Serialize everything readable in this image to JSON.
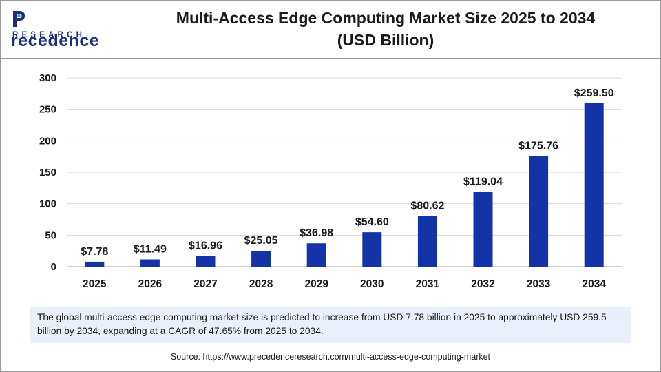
{
  "brand": {
    "name_top_rest": "recedence",
    "name_bottom": "RESEARCH",
    "primary_color": "#1d2e7a",
    "accent_color": "#2a9ad8"
  },
  "title_line1": "Multi-Access Edge Computing Market Size 2025 to 2034",
  "title_line2": "(USD Billion)",
  "summary": "The global multi-access edge computing market size is predicted to increase from USD 7.78 billion in 2025 to approximately USD 259.5 billion by 2034, expanding at a CAGR of 47.65% from 2025 to 2034.",
  "source": "Source: https://www.precedenceresearch.com/multi-access-edge-computing-market",
  "chart_data": {
    "type": "bar",
    "title": "Multi-Access Edge Computing Market Size 2025 to 2034 (USD Billion)",
    "xlabel": "",
    "ylabel": "",
    "categories": [
      "2025",
      "2026",
      "2027",
      "2028",
      "2029",
      "2030",
      "2031",
      "2032",
      "2033",
      "2034"
    ],
    "values": [
      7.78,
      11.49,
      16.96,
      25.05,
      36.98,
      54.6,
      80.62,
      119.04,
      175.76,
      259.5
    ],
    "data_labels": [
      "$7.78",
      "$11.49",
      "$16.96",
      "$25.05",
      "$36.98",
      "$54.60",
      "$80.62",
      "$119.04",
      "$175.76",
      "$259.50"
    ],
    "ylim": [
      0,
      300
    ],
    "yticks": [
      0,
      50,
      100,
      150,
      200,
      250,
      300
    ],
    "grid": true,
    "bar_color": "#1433a6",
    "grid_color": "#d9d9d9"
  }
}
